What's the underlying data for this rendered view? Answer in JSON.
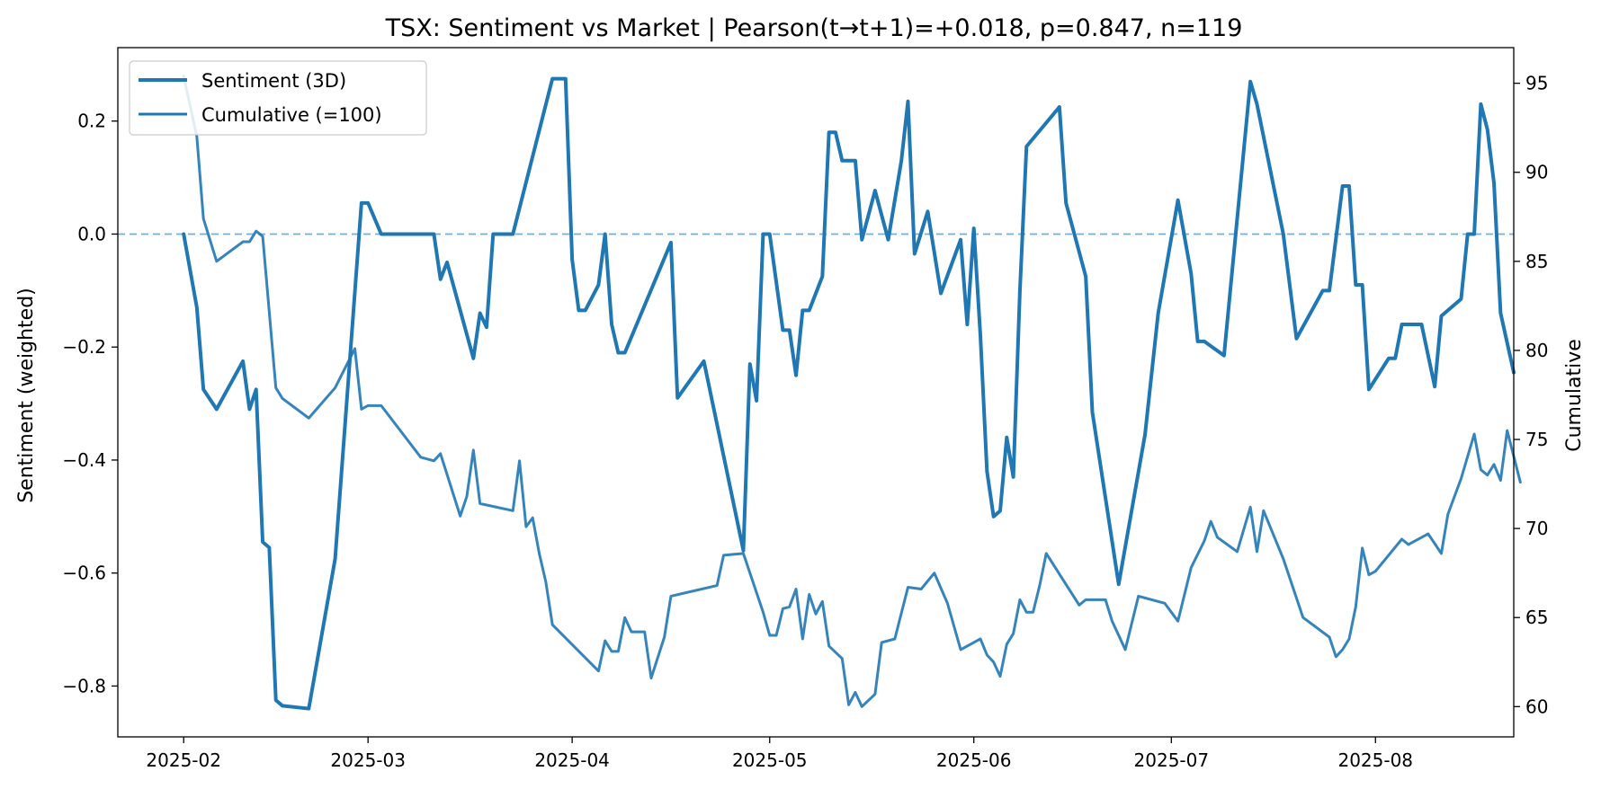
{
  "chart_data": {
    "type": "line",
    "title": "TSX: Sentiment vs Market | Pearson(t→t+1)=+0.018, p=0.847, n=119",
    "xlabel": "",
    "ylabel_left": "Sentiment (weighted)",
    "ylabel_right": "Cumulative",
    "x_axis": {
      "type": "date",
      "range": [
        "2025-01-22",
        "2025-08-22"
      ],
      "ticks": [
        "2025-02-01",
        "2025-03-01",
        "2025-04-01",
        "2025-05-01",
        "2025-06-01",
        "2025-07-01",
        "2025-08-01"
      ],
      "tick_labels": [
        "2025-02",
        "2025-03",
        "2025-04",
        "2025-05",
        "2025-06",
        "2025-07",
        "2025-08"
      ]
    },
    "y_left": {
      "range": [
        -0.89,
        0.33
      ],
      "ticks": [
        0.2,
        0.0,
        -0.2,
        -0.4,
        -0.6,
        -0.8
      ],
      "tick_labels": [
        "0.2",
        "0.0",
        "−0.2",
        "−0.4",
        "−0.6",
        "−0.8"
      ]
    },
    "y_right": {
      "range": [
        58.3,
        97.0
      ],
      "ticks": [
        95,
        90,
        85,
        80,
        75,
        70,
        65,
        60
      ],
      "tick_labels": [
        "95",
        "90",
        "85",
        "80",
        "75",
        "70",
        "65",
        "60"
      ]
    },
    "reference_line": {
      "axis": "left",
      "y": 0.0,
      "style": "dashed"
    },
    "grid": false,
    "legend": {
      "position": "top-left",
      "entries": [
        {
          "label": "Sentiment (3D)",
          "series": "sentiment"
        },
        {
          "label": "Cumulative (=100)",
          "series": "cumulative"
        }
      ]
    },
    "colors": {
      "sentiment": "#1f77b4",
      "cumulative": "#1f77b4",
      "reference": "#1f77b4"
    },
    "series": [
      {
        "name": "Sentiment (3D)",
        "key": "sentiment",
        "axis": "left",
        "points": [
          [
            "2025-02-01",
            0.0
          ],
          [
            "2025-02-03",
            -0.13
          ],
          [
            "2025-02-04",
            -0.275
          ],
          [
            "2025-02-06",
            -0.31
          ],
          [
            "2025-02-10",
            -0.225
          ],
          [
            "2025-02-11",
            -0.31
          ],
          [
            "2025-02-12",
            -0.275
          ],
          [
            "2025-02-13",
            -0.545
          ],
          [
            "2025-02-14",
            -0.555
          ],
          [
            "2025-02-15",
            -0.825
          ],
          [
            "2025-02-16",
            -0.835
          ],
          [
            "2025-02-20",
            -0.84
          ],
          [
            "2025-02-24",
            -0.575
          ],
          [
            "2025-02-28",
            0.055
          ],
          [
            "2025-03-01",
            0.055
          ],
          [
            "2025-03-03",
            0.0
          ],
          [
            "2025-03-10",
            0.0
          ],
          [
            "2025-03-11",
            0.0
          ],
          [
            "2025-03-12",
            -0.08
          ],
          [
            "2025-03-13",
            -0.05
          ],
          [
            "2025-03-17",
            -0.22
          ],
          [
            "2025-03-18",
            -0.14
          ],
          [
            "2025-03-19",
            -0.165
          ],
          [
            "2025-03-20",
            0.0
          ],
          [
            "2025-03-23",
            0.0
          ],
          [
            "2025-03-29",
            0.275
          ],
          [
            "2025-03-31",
            0.275
          ],
          [
            "2025-04-01",
            -0.045
          ],
          [
            "2025-04-02",
            -0.135
          ],
          [
            "2025-04-03",
            -0.135
          ],
          [
            "2025-04-05",
            -0.09
          ],
          [
            "2025-04-06",
            0.0
          ],
          [
            "2025-04-07",
            -0.16
          ],
          [
            "2025-04-08",
            -0.21
          ],
          [
            "2025-04-09",
            -0.21
          ],
          [
            "2025-04-16",
            -0.015
          ],
          [
            "2025-04-17",
            -0.29
          ],
          [
            "2025-04-21",
            -0.225
          ],
          [
            "2025-04-27",
            -0.56
          ],
          [
            "2025-04-28",
            -0.23
          ],
          [
            "2025-04-29",
            -0.295
          ],
          [
            "2025-04-30",
            0.0
          ],
          [
            "2025-05-01",
            0.0
          ],
          [
            "2025-05-03",
            -0.17
          ],
          [
            "2025-05-04",
            -0.17
          ],
          [
            "2025-05-05",
            -0.25
          ],
          [
            "2025-05-06",
            -0.135
          ],
          [
            "2025-05-07",
            -0.135
          ],
          [
            "2025-05-09",
            -0.075
          ],
          [
            "2025-05-10",
            0.18
          ],
          [
            "2025-05-11",
            0.18
          ],
          [
            "2025-05-12",
            0.13
          ],
          [
            "2025-05-14",
            0.13
          ],
          [
            "2025-05-15",
            -0.01
          ],
          [
            "2025-05-17",
            0.077
          ],
          [
            "2025-05-19",
            -0.01
          ],
          [
            "2025-05-21",
            0.13
          ],
          [
            "2025-05-22",
            0.235
          ],
          [
            "2025-05-23",
            -0.035
          ],
          [
            "2025-05-25",
            0.04
          ],
          [
            "2025-05-27",
            -0.105
          ],
          [
            "2025-05-30",
            -0.01
          ],
          [
            "2025-05-31",
            -0.16
          ],
          [
            "2025-06-01",
            0.01
          ],
          [
            "2025-06-02",
            -0.18
          ],
          [
            "2025-06-03",
            -0.42
          ],
          [
            "2025-06-04",
            -0.5
          ],
          [
            "2025-06-05",
            -0.49
          ],
          [
            "2025-06-06",
            -0.36
          ],
          [
            "2025-06-07",
            -0.43
          ],
          [
            "2025-06-08",
            -0.1
          ],
          [
            "2025-06-09",
            0.155
          ],
          [
            "2025-06-14",
            0.225
          ],
          [
            "2025-06-15",
            0.055
          ],
          [
            "2025-06-18",
            -0.075
          ],
          [
            "2025-06-19",
            -0.315
          ],
          [
            "2025-06-23",
            -0.62
          ],
          [
            "2025-06-27",
            -0.355
          ],
          [
            "2025-06-29",
            -0.14
          ],
          [
            "2025-07-02",
            0.06
          ],
          [
            "2025-07-04",
            -0.07
          ],
          [
            "2025-07-05",
            -0.19
          ],
          [
            "2025-07-06",
            -0.19
          ],
          [
            "2025-07-09",
            -0.215
          ],
          [
            "2025-07-13",
            0.27
          ],
          [
            "2025-07-14",
            0.23
          ],
          [
            "2025-07-18",
            0.0
          ],
          [
            "2025-07-20",
            -0.185
          ],
          [
            "2025-07-24",
            -0.1
          ],
          [
            "2025-07-25",
            -0.1
          ],
          [
            "2025-07-27",
            0.085
          ],
          [
            "2025-07-28",
            0.085
          ],
          [
            "2025-07-29",
            -0.09
          ],
          [
            "2025-07-30",
            -0.09
          ],
          [
            "2025-07-31",
            -0.275
          ],
          [
            "2025-08-03",
            -0.22
          ],
          [
            "2025-08-04",
            -0.22
          ],
          [
            "2025-08-05",
            -0.16
          ],
          [
            "2025-08-08",
            -0.16
          ],
          [
            "2025-08-10",
            -0.27
          ],
          [
            "2025-08-11",
            -0.145
          ],
          [
            "2025-08-14",
            -0.115
          ],
          [
            "2025-08-15",
            0.0
          ],
          [
            "2025-08-16",
            0.0
          ],
          [
            "2025-08-17",
            0.23
          ],
          [
            "2025-08-18",
            0.185
          ],
          [
            "2025-08-19",
            0.09
          ],
          [
            "2025-08-20",
            -0.14
          ],
          [
            "2025-08-22",
            -0.245
          ]
        ]
      },
      {
        "name": "Cumulative (=100)",
        "key": "cumulative",
        "axis": "right",
        "points": [
          [
            "2025-02-01",
            95.4
          ],
          [
            "2025-02-03",
            92.0
          ],
          [
            "2025-02-04",
            87.4
          ],
          [
            "2025-02-06",
            85.0
          ],
          [
            "2025-02-10",
            86.1
          ],
          [
            "2025-02-11",
            86.1
          ],
          [
            "2025-02-12",
            86.7
          ],
          [
            "2025-02-13",
            86.4
          ],
          [
            "2025-02-15",
            77.9
          ],
          [
            "2025-02-16",
            77.3
          ],
          [
            "2025-02-20",
            76.2
          ],
          [
            "2025-02-24",
            77.9
          ],
          [
            "2025-02-27",
            80.1
          ],
          [
            "2025-02-28",
            76.7
          ],
          [
            "2025-03-01",
            76.9
          ],
          [
            "2025-03-03",
            76.9
          ],
          [
            "2025-03-09",
            74.0
          ],
          [
            "2025-03-11",
            73.8
          ],
          [
            "2025-03-12",
            74.2
          ],
          [
            "2025-03-15",
            70.7
          ],
          [
            "2025-03-16",
            71.8
          ],
          [
            "2025-03-17",
            74.4
          ],
          [
            "2025-03-18",
            71.4
          ],
          [
            "2025-03-23",
            71.0
          ],
          [
            "2025-03-24",
            73.8
          ],
          [
            "2025-03-25",
            70.1
          ],
          [
            "2025-03-26",
            70.6
          ],
          [
            "2025-03-27",
            68.6
          ],
          [
            "2025-03-28",
            67.0
          ],
          [
            "2025-03-29",
            64.6
          ],
          [
            "2025-04-05",
            62.0
          ],
          [
            "2025-04-06",
            63.7
          ],
          [
            "2025-04-07",
            63.1
          ],
          [
            "2025-04-08",
            63.1
          ],
          [
            "2025-04-09",
            65.0
          ],
          [
            "2025-04-10",
            64.2
          ],
          [
            "2025-04-12",
            64.2
          ],
          [
            "2025-04-13",
            61.6
          ],
          [
            "2025-04-15",
            63.9
          ],
          [
            "2025-04-16",
            66.2
          ],
          [
            "2025-04-23",
            66.8
          ],
          [
            "2025-04-24",
            68.5
          ],
          [
            "2025-04-27",
            68.6
          ],
          [
            "2025-04-30",
            65.3
          ],
          [
            "2025-05-01",
            64.0
          ],
          [
            "2025-05-02",
            64.0
          ],
          [
            "2025-05-03",
            65.5
          ],
          [
            "2025-05-04",
            65.6
          ],
          [
            "2025-05-05",
            66.6
          ],
          [
            "2025-05-06",
            63.8
          ],
          [
            "2025-05-07",
            66.3
          ],
          [
            "2025-05-08",
            65.2
          ],
          [
            "2025-05-09",
            65.9
          ],
          [
            "2025-05-10",
            63.4
          ],
          [
            "2025-05-12",
            62.7
          ],
          [
            "2025-05-13",
            60.1
          ],
          [
            "2025-05-14",
            60.8
          ],
          [
            "2025-05-15",
            60.0
          ],
          [
            "2025-05-17",
            60.7
          ],
          [
            "2025-05-18",
            63.6
          ],
          [
            "2025-05-20",
            63.8
          ],
          [
            "2025-05-22",
            66.7
          ],
          [
            "2025-05-24",
            66.6
          ],
          [
            "2025-05-26",
            67.5
          ],
          [
            "2025-05-28",
            65.8
          ],
          [
            "2025-05-30",
            63.2
          ],
          [
            "2025-06-02",
            63.8
          ],
          [
            "2025-06-03",
            62.9
          ],
          [
            "2025-06-04",
            62.5
          ],
          [
            "2025-06-05",
            61.7
          ],
          [
            "2025-06-06",
            63.5
          ],
          [
            "2025-06-07",
            64.1
          ],
          [
            "2025-06-08",
            66.0
          ],
          [
            "2025-06-09",
            65.3
          ],
          [
            "2025-06-10",
            65.3
          ],
          [
            "2025-06-11",
            66.8
          ],
          [
            "2025-06-12",
            68.6
          ],
          [
            "2025-06-17",
            65.7
          ],
          [
            "2025-06-18",
            66.0
          ],
          [
            "2025-06-21",
            66.0
          ],
          [
            "2025-06-22",
            64.8
          ],
          [
            "2025-06-24",
            63.2
          ],
          [
            "2025-06-26",
            66.2
          ],
          [
            "2025-06-30",
            65.8
          ],
          [
            "2025-07-02",
            64.8
          ],
          [
            "2025-07-04",
            67.8
          ],
          [
            "2025-07-06",
            69.3
          ],
          [
            "2025-07-07",
            70.4
          ],
          [
            "2025-07-08",
            69.5
          ],
          [
            "2025-07-11",
            68.7
          ],
          [
            "2025-07-13",
            71.2
          ],
          [
            "2025-07-14",
            68.7
          ],
          [
            "2025-07-15",
            71.0
          ],
          [
            "2025-07-18",
            68.3
          ],
          [
            "2025-07-21",
            65.0
          ],
          [
            "2025-07-25",
            63.9
          ],
          [
            "2025-07-26",
            62.8
          ],
          [
            "2025-07-27",
            63.2
          ],
          [
            "2025-07-28",
            63.8
          ],
          [
            "2025-07-29",
            65.6
          ],
          [
            "2025-07-30",
            68.9
          ],
          [
            "2025-07-31",
            67.4
          ],
          [
            "2025-08-01",
            67.6
          ],
          [
            "2025-08-05",
            69.4
          ],
          [
            "2025-08-06",
            69.1
          ],
          [
            "2025-08-09",
            69.7
          ],
          [
            "2025-08-11",
            68.6
          ],
          [
            "2025-08-12",
            70.8
          ],
          [
            "2025-08-14",
            72.8
          ],
          [
            "2025-08-16",
            75.3
          ],
          [
            "2025-08-17",
            73.3
          ],
          [
            "2025-08-18",
            73.0
          ],
          [
            "2025-08-19",
            73.6
          ],
          [
            "2025-08-20",
            72.7
          ],
          [
            "2025-08-21",
            75.5
          ],
          [
            "2025-08-23",
            72.6
          ]
        ]
      }
    ]
  }
}
